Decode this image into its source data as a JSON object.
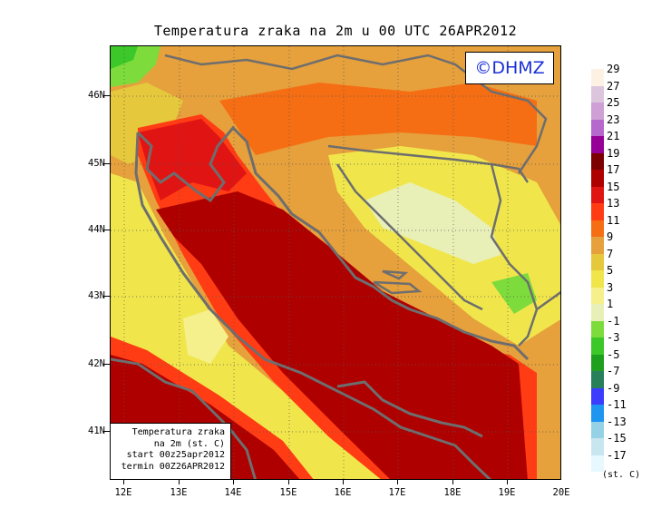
{
  "title": "Temperatura zraka na 2m u 00 UTC 26APR2012",
  "copyright": "©DHMZ",
  "info_box": [
    "Temperatura zraka",
    "na 2m (st. C)",
    "start 00z25apr2012",
    "termin 00Z26APR2012"
  ],
  "lat_labels": [
    "46N",
    "45N",
    "44N",
    "43N",
    "42N",
    "41N"
  ],
  "lon_labels": [
    "12E",
    "13E",
    "14E",
    "15E",
    "16E",
    "17E",
    "18E",
    "19E",
    "20E"
  ],
  "legend": {
    "values": [
      "29",
      "27",
      "25",
      "23",
      "21",
      "19",
      "17",
      "15",
      "13",
      "11",
      "9",
      "7",
      "5",
      "3",
      "1",
      "-1",
      "-3",
      "-5",
      "-7",
      "-9",
      "-11",
      "-13",
      "-15",
      "-17"
    ],
    "colors": [
      "#fdf1e3",
      "#dcc6de",
      "#cfa0d6",
      "#b668cc",
      "#960096",
      "#7d0000",
      "#af0000",
      "#e11414",
      "#ff3c14",
      "#f56e14",
      "#e6a03c",
      "#e6c83c",
      "#f0e64b",
      "#f5f08c",
      "#e8f0b8",
      "#7ddc3c",
      "#3cc828",
      "#1ea01e",
      "#28805a",
      "#3c3cff",
      "#1e96f0",
      "#96d2e6",
      "#c8e6f0",
      "#e8f8ff"
    ],
    "unit": "(st. C)"
  }
}
